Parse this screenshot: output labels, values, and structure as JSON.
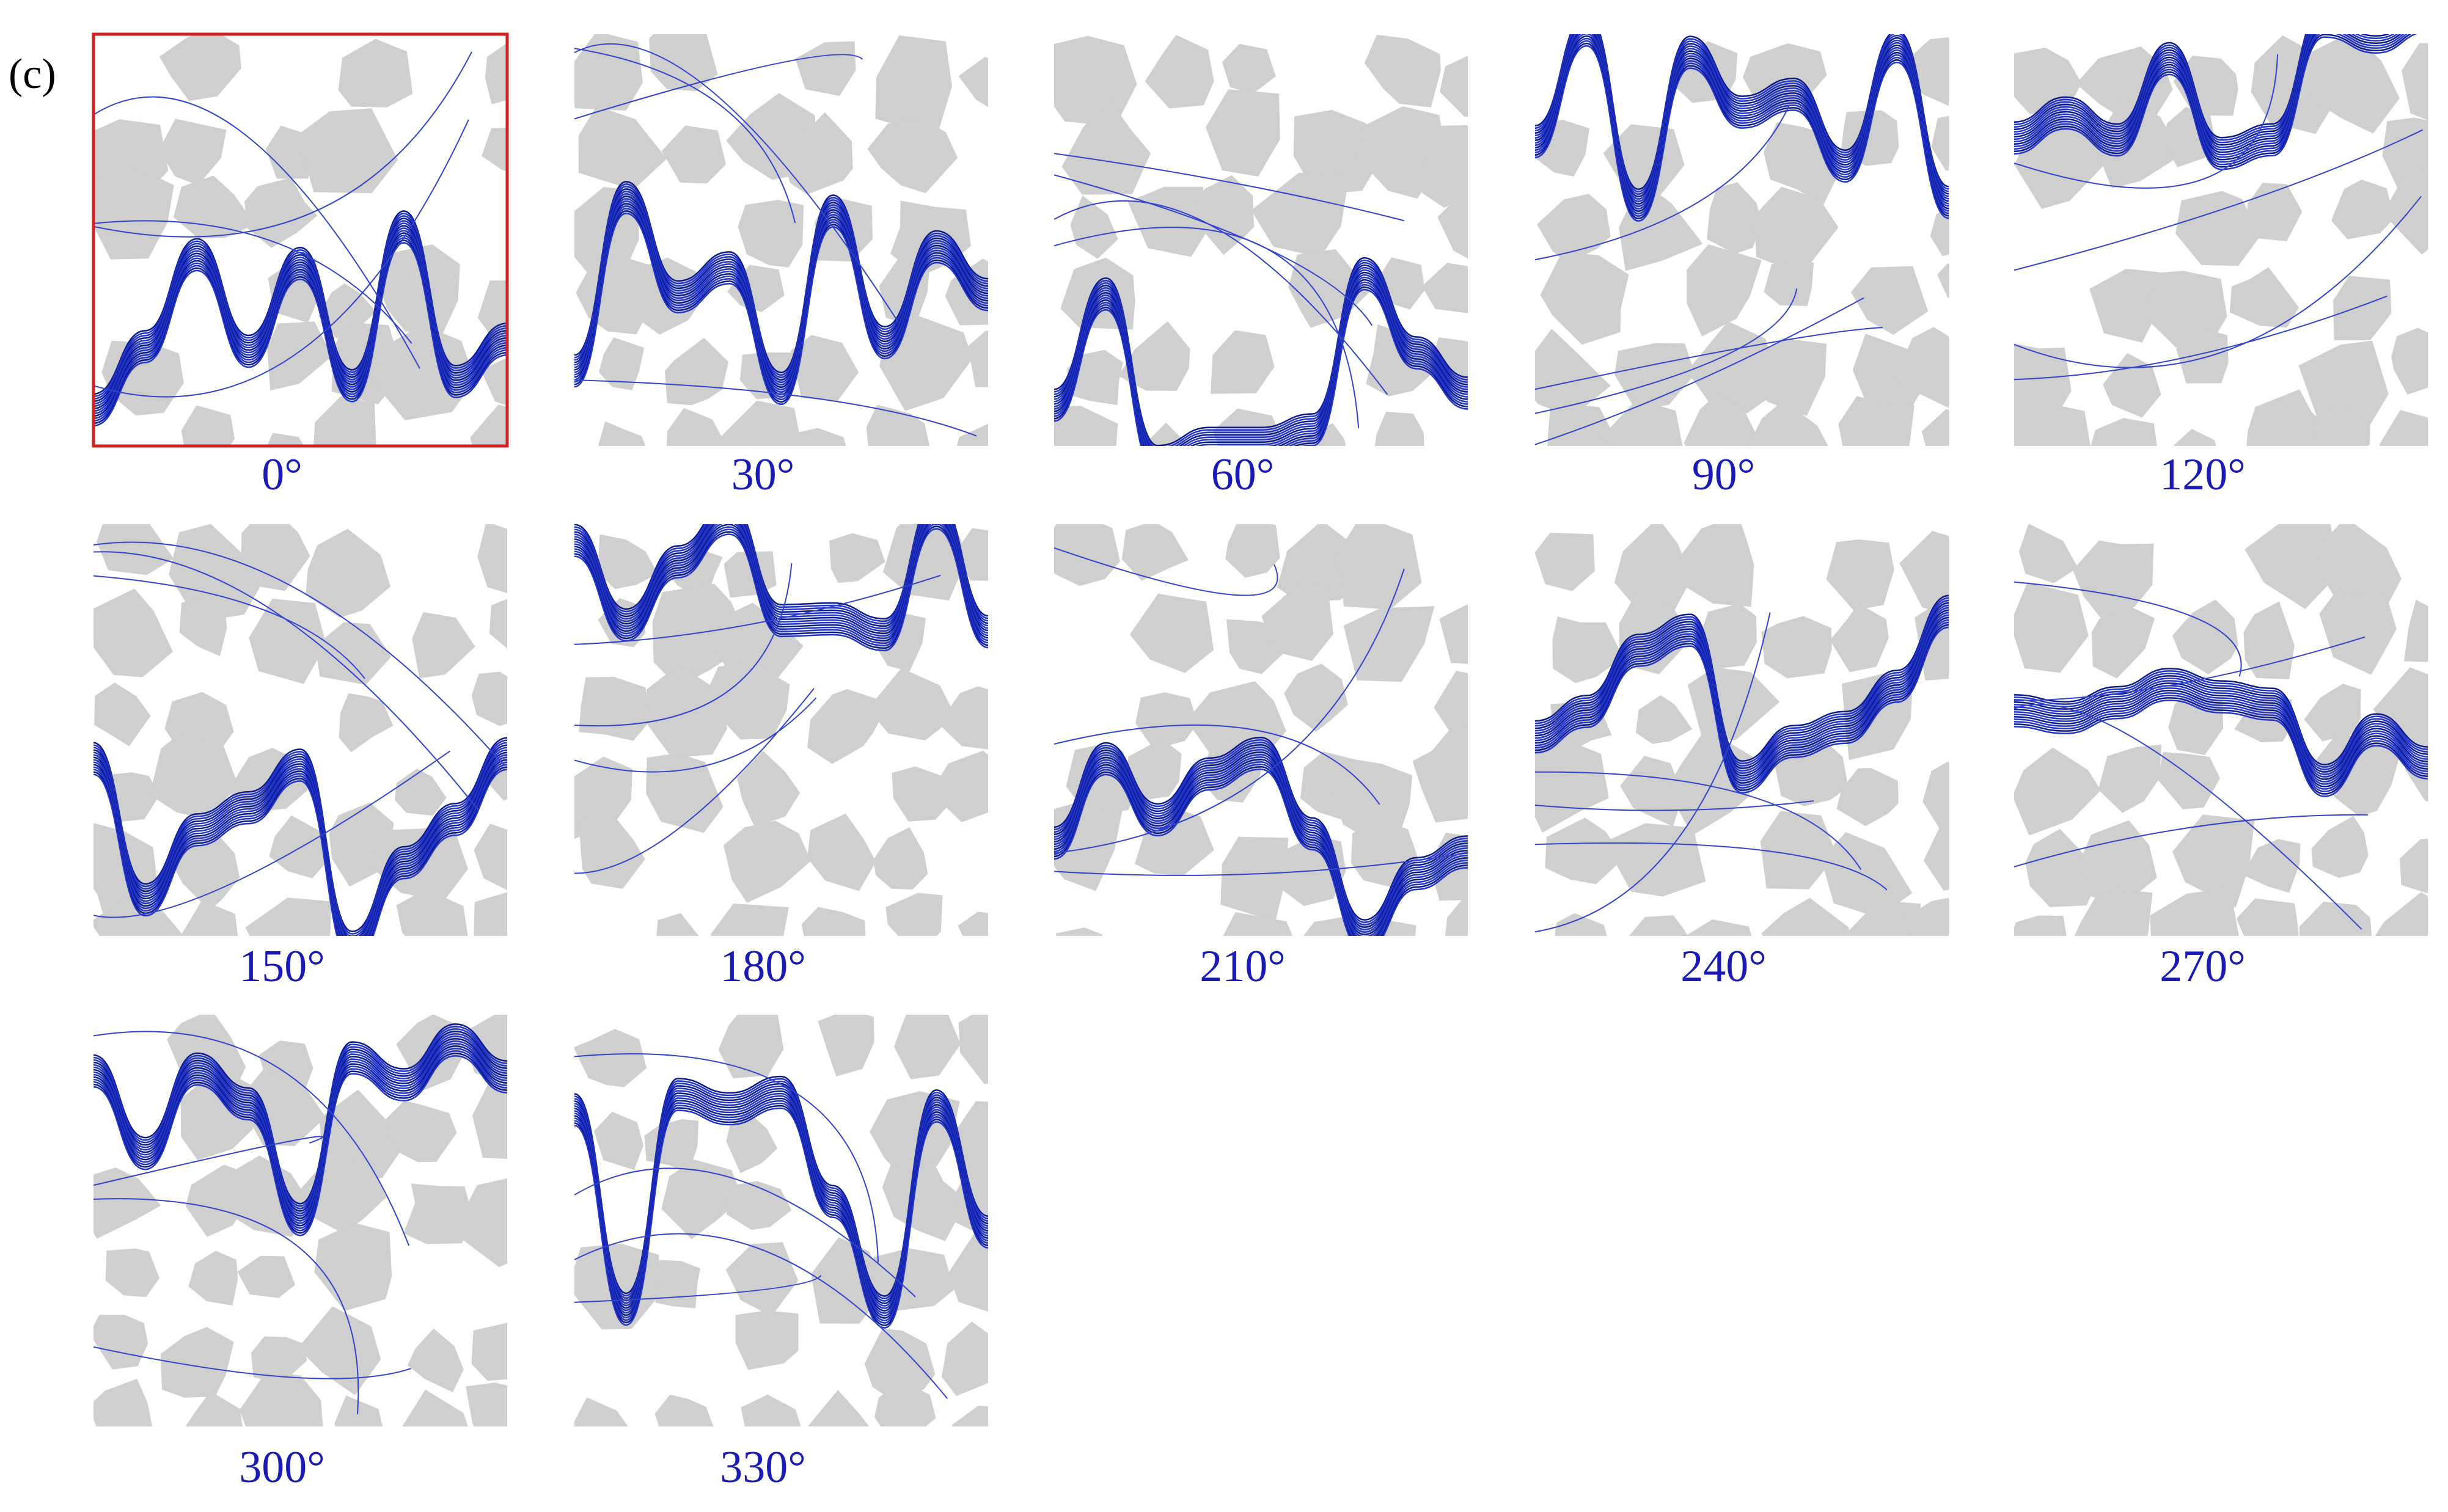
{
  "figure": {
    "panel_label": "(c)",
    "panels": [
      {
        "label": "0°"
      },
      {
        "label": "30°"
      },
      {
        "label": "60°"
      },
      {
        "label": "90°"
      },
      {
        "label": "120°"
      },
      {
        "label": "150°"
      },
      {
        "label": "180°"
      },
      {
        "label": "210°"
      },
      {
        "label": "240°"
      },
      {
        "label": "270°"
      },
      {
        "label": "300°"
      },
      {
        "label": "330°"
      }
    ]
  }
}
